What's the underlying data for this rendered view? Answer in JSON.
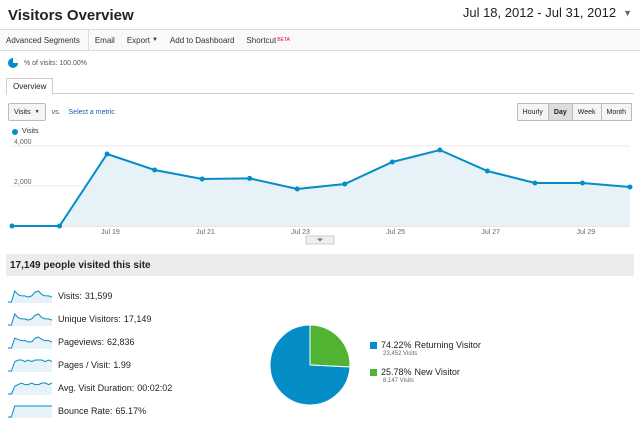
{
  "header": {
    "title": "Visitors Overview",
    "date_range": "Jul 18, 2012 - Jul 31, 2012"
  },
  "toolbar": {
    "advanced_segments": "Advanced Segments",
    "email": "Email",
    "export": "Export",
    "add_to_dashboard": "Add to Dashboard",
    "shortcut": "Shortcut",
    "beta": "BETA"
  },
  "segment": {
    "label": "% of visits: 100.00%"
  },
  "tabs": [
    {
      "label": "Overview"
    }
  ],
  "chart_controls": {
    "metric": "Visits",
    "vs": "vs.",
    "select_metric": "Select a metric",
    "granularity": [
      "Hourly",
      "Day",
      "Week",
      "Month"
    ],
    "active_granularity": "Day"
  },
  "chart_data": {
    "type": "area",
    "series": [
      {
        "name": "Visits",
        "values": [
          0,
          0,
          3600,
          2800,
          2350,
          2380,
          1850,
          2100,
          3200,
          3800,
          2750,
          2150,
          2150,
          1950
        ]
      }
    ],
    "x": [
      "Jul 17",
      "Jul 18",
      "Jul 19",
      "Jul 20",
      "Jul 21",
      "Jul 22",
      "Jul 23",
      "Jul 24",
      "Jul 25",
      "Jul 26",
      "Jul 27",
      "Jul 28",
      "Jul 29",
      "Jul 30"
    ],
    "x_ticks": [
      "Jul 19",
      "Jul 21",
      "Jul 23",
      "Jul 25",
      "Jul 27",
      "Jul 29"
    ],
    "y_ticks": [
      "4,000",
      "2,000"
    ],
    "ylim": [
      0,
      4000
    ],
    "color": "#058dc7",
    "fill": "#e6f1f8",
    "legend": "top-left",
    "grid": true
  },
  "summary": {
    "headline": "17,149 people visited this site"
  },
  "metrics": [
    {
      "label": "Visits:",
      "value": "31,599"
    },
    {
      "label": "Unique Visitors:",
      "value": "17,149"
    },
    {
      "label": "Pageviews:",
      "value": "62,836"
    },
    {
      "label": "Pages / Visit:",
      "value": "1.99"
    },
    {
      "label": "Avg. Visit Duration:",
      "value": "00:02:02"
    },
    {
      "label": "Bounce Rate:",
      "value": "65.17%"
    }
  ],
  "pie": {
    "slices": [
      {
        "pct_value": 74.22,
        "pct": "74.22%",
        "label": "Returning Visitor",
        "sub": "23,452 Visits",
        "color": "#058dc7"
      },
      {
        "pct_value": 25.78,
        "pct": "25.78%",
        "label": "New Visitor",
        "sub": "8,147 Visits",
        "color": "#50b432"
      }
    ]
  }
}
